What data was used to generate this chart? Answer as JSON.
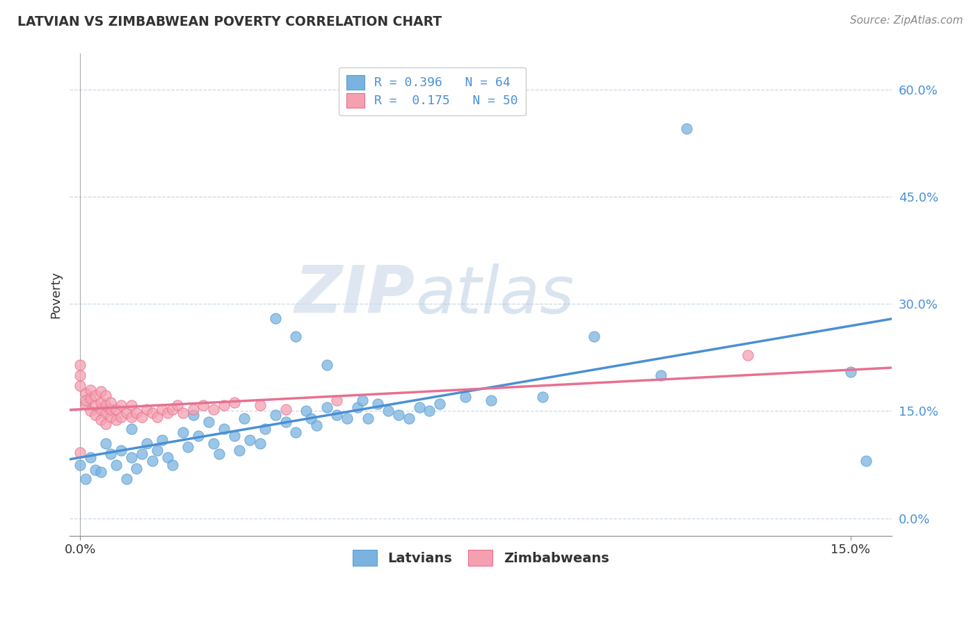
{
  "title": "LATVIAN VS ZIMBABWEAN POVERTY CORRELATION CHART",
  "source_text": "Source: ZipAtlas.com",
  "ylabel_label": "Poverty",
  "right_yticks": [
    0.0,
    0.15,
    0.3,
    0.45,
    0.6
  ],
  "right_ytick_labels": [
    "0.0%",
    "15.0%",
    "30.0%",
    "45.0%",
    "60.0%"
  ],
  "xmin": -0.002,
  "xmax": 0.158,
  "ymin": -0.025,
  "ymax": 0.65,
  "latvian_color": "#7ab3e0",
  "latvian_edge_color": "#5a9fd4",
  "zimbabwean_color": "#f4a0b0",
  "zimbabwean_edge_color": "#e87090",
  "latvian_line_color": "#4a8fd4",
  "zimbabwean_line_color": "#e87090",
  "background_color": "#ffffff",
  "grid_color": "#c8d8e8",
  "watermark_zip": "ZIP",
  "watermark_atlas": "atlas",
  "legend_label_latvian": "R = 0.396   N = 64",
  "legend_label_zimbabwean": "R =  0.175   N = 50",
  "bottom_legend_latvians": "Latvians",
  "bottom_legend_zimbabweans": "Zimbabweans",
  "latvian_points": [
    [
      0.0,
      0.075
    ],
    [
      0.001,
      0.055
    ],
    [
      0.002,
      0.085
    ],
    [
      0.003,
      0.068
    ],
    [
      0.004,
      0.065
    ],
    [
      0.005,
      0.105
    ],
    [
      0.006,
      0.09
    ],
    [
      0.007,
      0.075
    ],
    [
      0.008,
      0.095
    ],
    [
      0.009,
      0.055
    ],
    [
      0.01,
      0.125
    ],
    [
      0.01,
      0.085
    ],
    [
      0.011,
      0.07
    ],
    [
      0.012,
      0.09
    ],
    [
      0.013,
      0.105
    ],
    [
      0.014,
      0.08
    ],
    [
      0.015,
      0.095
    ],
    [
      0.016,
      0.11
    ],
    [
      0.017,
      0.085
    ],
    [
      0.018,
      0.075
    ],
    [
      0.02,
      0.12
    ],
    [
      0.021,
      0.1
    ],
    [
      0.022,
      0.145
    ],
    [
      0.023,
      0.115
    ],
    [
      0.025,
      0.135
    ],
    [
      0.026,
      0.105
    ],
    [
      0.027,
      0.09
    ],
    [
      0.028,
      0.125
    ],
    [
      0.03,
      0.115
    ],
    [
      0.031,
      0.095
    ],
    [
      0.032,
      0.14
    ],
    [
      0.033,
      0.11
    ],
    [
      0.035,
      0.105
    ],
    [
      0.036,
      0.125
    ],
    [
      0.038,
      0.145
    ],
    [
      0.04,
      0.135
    ],
    [
      0.042,
      0.12
    ],
    [
      0.044,
      0.15
    ],
    [
      0.045,
      0.14
    ],
    [
      0.046,
      0.13
    ],
    [
      0.048,
      0.155
    ],
    [
      0.05,
      0.145
    ],
    [
      0.052,
      0.14
    ],
    [
      0.054,
      0.155
    ],
    [
      0.055,
      0.165
    ],
    [
      0.056,
      0.14
    ],
    [
      0.058,
      0.16
    ],
    [
      0.06,
      0.15
    ],
    [
      0.062,
      0.145
    ],
    [
      0.064,
      0.14
    ],
    [
      0.066,
      0.155
    ],
    [
      0.068,
      0.15
    ],
    [
      0.07,
      0.16
    ],
    [
      0.075,
      0.17
    ],
    [
      0.08,
      0.165
    ],
    [
      0.09,
      0.17
    ],
    [
      0.038,
      0.28
    ],
    [
      0.042,
      0.255
    ],
    [
      0.048,
      0.215
    ],
    [
      0.1,
      0.255
    ],
    [
      0.113,
      0.2
    ],
    [
      0.118,
      0.545
    ],
    [
      0.15,
      0.205
    ],
    [
      0.153,
      0.08
    ]
  ],
  "zimbabwean_points": [
    [
      0.0,
      0.2
    ],
    [
      0.0,
      0.185
    ],
    [
      0.001,
      0.16
    ],
    [
      0.001,
      0.175
    ],
    [
      0.001,
      0.165
    ],
    [
      0.002,
      0.15
    ],
    [
      0.002,
      0.168
    ],
    [
      0.002,
      0.18
    ],
    [
      0.003,
      0.145
    ],
    [
      0.003,
      0.158
    ],
    [
      0.003,
      0.172
    ],
    [
      0.004,
      0.138
    ],
    [
      0.004,
      0.152
    ],
    [
      0.004,
      0.162
    ],
    [
      0.004,
      0.178
    ],
    [
      0.005,
      0.132
    ],
    [
      0.005,
      0.148
    ],
    [
      0.005,
      0.158
    ],
    [
      0.005,
      0.172
    ],
    [
      0.006,
      0.142
    ],
    [
      0.006,
      0.152
    ],
    [
      0.006,
      0.162
    ],
    [
      0.007,
      0.138
    ],
    [
      0.007,
      0.152
    ],
    [
      0.008,
      0.142
    ],
    [
      0.008,
      0.158
    ],
    [
      0.009,
      0.148
    ],
    [
      0.01,
      0.142
    ],
    [
      0.01,
      0.158
    ],
    [
      0.011,
      0.148
    ],
    [
      0.012,
      0.142
    ],
    [
      0.013,
      0.152
    ],
    [
      0.014,
      0.148
    ],
    [
      0.015,
      0.142
    ],
    [
      0.016,
      0.152
    ],
    [
      0.017,
      0.148
    ],
    [
      0.018,
      0.152
    ],
    [
      0.019,
      0.158
    ],
    [
      0.02,
      0.148
    ],
    [
      0.022,
      0.152
    ],
    [
      0.024,
      0.158
    ],
    [
      0.026,
      0.152
    ],
    [
      0.028,
      0.158
    ],
    [
      0.03,
      0.162
    ],
    [
      0.035,
      0.158
    ],
    [
      0.04,
      0.152
    ],
    [
      0.05,
      0.165
    ],
    [
      0.0,
      0.215
    ],
    [
      0.13,
      0.228
    ],
    [
      0.0,
      0.092
    ]
  ]
}
